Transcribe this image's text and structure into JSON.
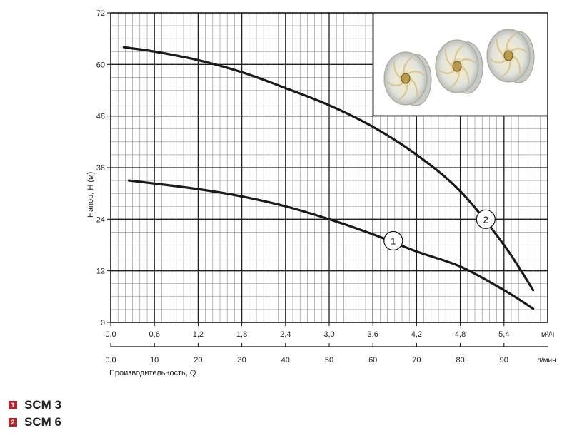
{
  "chart_data": {
    "type": "line",
    "xlabel": "Производительность, Q",
    "ylabel": "Напор, Н (м)",
    "x_unit_primary": "м³/ч",
    "x_unit_secondary": "л/мин",
    "xlim": [
      0,
      6
    ],
    "ylim": [
      0,
      72
    ],
    "x_ticks_primary": [
      "0,0",
      "0,6",
      "1,2",
      "1,8",
      "2,4",
      "3,0",
      "3,6",
      "4,2",
      "4,8",
      "5,4"
    ],
    "x_ticks_secondary": [
      "0,0",
      "10",
      "20",
      "30",
      "40",
      "50",
      "60",
      "70",
      "80",
      "90"
    ],
    "y_ticks": [
      "0",
      "12",
      "24",
      "36",
      "48",
      "60",
      "72"
    ],
    "grid": true,
    "series": [
      {
        "name": "1",
        "x": [
          0.25,
          0.6,
          1.2,
          1.8,
          2.4,
          3.0,
          3.6,
          4.2,
          4.8,
          5.4,
          5.8
        ],
        "y": [
          33,
          32.3,
          31,
          29.3,
          27,
          24,
          20.5,
          16.5,
          13,
          7.5,
          3.2
        ]
      },
      {
        "name": "2",
        "x": [
          0.18,
          0.6,
          1.2,
          1.8,
          2.4,
          3.0,
          3.6,
          4.2,
          4.8,
          5.4,
          5.8
        ],
        "y": [
          64,
          63,
          61,
          58.2,
          54.5,
          50.5,
          45.5,
          39,
          30.5,
          18,
          7.5
        ]
      }
    ],
    "annotations": [
      {
        "text": "1",
        "x": 3.88,
        "y": 19
      },
      {
        "text": "2",
        "x": 5.15,
        "y": 24
      }
    ]
  },
  "legend": {
    "items": [
      {
        "badge": "1",
        "label": "SCM 3"
      },
      {
        "badge": "2",
        "label": "SCM 6"
      }
    ],
    "badge_color": "#b0272d"
  }
}
